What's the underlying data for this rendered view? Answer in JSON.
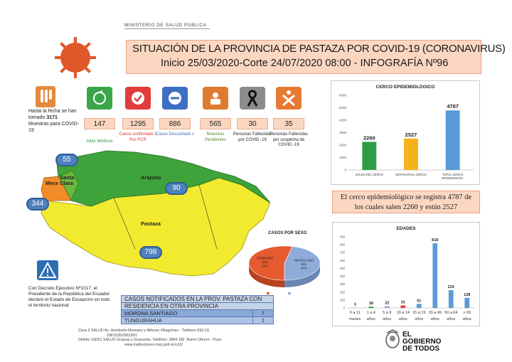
{
  "header": {
    "ministry": "MINISTERIO DE SALUD PÚBLICA",
    "title_line1": "SITUACIÓN DE LA PROVINCIA DE PASTAZA POR COVID-19 (CORONAVIRUS)",
    "title_line2": "Inicio 25/03/2020-Corte 24/07/2020 08:00  - INFOGRAFÍA Nº96"
  },
  "tests_note": {
    "prefix": "Hasta la fecha se han tomado",
    "count": "3171",
    "suffix": "Muestras para COVID- 19"
  },
  "indicators": [
    {
      "value": "147",
      "label": "Altas Médicas",
      "color": "#3aa64a",
      "label_color": "#2e9c44",
      "icon": "recovery-icon"
    },
    {
      "value": "1295",
      "label": "Casos confirmado s Por PCR",
      "color": "#e23b3b",
      "label_color": "#d9322f",
      "icon": "check-icon"
    },
    {
      "value": "886",
      "label": "Casos Descartado s",
      "color": "#3d70c2",
      "label_color": "#3c6fc2",
      "icon": "minus-icon"
    },
    {
      "value": "565",
      "label": "Muestras Pendientes",
      "color": "#e07a2e",
      "label_color": "#5a7d2a",
      "icon": "sample-icon"
    },
    {
      "value": "30",
      "label": "Personas Fallecidas por COVID -19",
      "color": "#8c8c8c",
      "label_color": "#222222",
      "icon": "mourning-ribbon-icon"
    },
    {
      "value": "35",
      "label": "Personas Fallecidas por sospecha de COVID -19",
      "color": "#e67a34",
      "label_color": "#222222",
      "icon": "person-x-icon"
    }
  ],
  "map": {
    "bubbles": [
      {
        "value": "55"
      },
      {
        "value": "90"
      },
      {
        "value": "344"
      },
      {
        "value": "798"
      }
    ],
    "labels": {
      "mera": "Mera",
      "santa_clara": "Santa Clara",
      "arajuno": "Arajuno",
      "pastaza": "Pastaza"
    },
    "colors": {
      "north": "#3ea33a",
      "south": "#f2ea2e",
      "west": "#f28c28"
    }
  },
  "decree": "Con Decreto Ejecutivo Nº1017, el Presidente de la República del Ecuador declaró el Estado de Excepción en todo el territorio nacional",
  "cases_table": {
    "header_line1": "CASOS NOTIFICADOS EN LA PROV. PASTAZA CON",
    "header_line2": "RESIDENCIA EN OTRA PROVINCIA",
    "rows": [
      {
        "province": "MORONA SANTIAGO",
        "count": "7"
      },
      {
        "province": "TUNGURAHUA",
        "count": "1"
      }
    ]
  },
  "footer": {
    "line1": "Zona 3 SALUD Av. Humberto Moreano y Alfonso Villagómez - Teléfono 593 (3)",
    "line2": "2961535/2961891",
    "line3": "Distrito 16D01 SALUD Guayas y Guaranda. Teléfono: 2884 182. Barrio Obrero - Puyo",
    "line4": "www.instituciones.msp.gob.ec/cz3/"
  },
  "gov_logo": {
    "line1": "EL",
    "line2": "GOBIERNO",
    "line3": "DE TODOS"
  },
  "cerco_text": {
    "line1": "El cerco epidemiológico se registra 4787 de",
    "line2": "los cuales salen 2260  y están 2527"
  },
  "chart_data": [
    {
      "type": "bar",
      "title": "CERCO  EPIDEMIOLÓGICO",
      "categories": [
        "SALEN DEL CERCO",
        "ESTAN EN EL CERCO",
        "TOTAL  CERCO EPIDEMIOLÓG."
      ],
      "values": [
        2260,
        2527,
        4787
      ],
      "colors": [
        "#2e9c44",
        "#f5b21c",
        "#5b9bd5"
      ],
      "ylim": [
        0,
        6000
      ],
      "yticks": [
        "0",
        "1000",
        "2000",
        "3000",
        "4000",
        "5000",
        "6000"
      ]
    },
    {
      "type": "pie",
      "title": "CASOS POR SEXO",
      "slices": [
        {
          "name": "FEMENINO",
          "value": 694,
          "pct": "54%",
          "color": "#e55a2e"
        },
        {
          "name": "MASCULINO",
          "value": 601,
          "pct": "46%",
          "color": "#8eabd9"
        }
      ]
    },
    {
      "type": "bar",
      "title": "EDADES",
      "categories": [
        "0 a 11 meses",
        "1 a 4 años",
        "5 a 9 años",
        "10 a 14 años",
        "15 a 19 años",
        "20 a 49 años",
        "50 a 64 años",
        "> 65 años"
      ],
      "values": [
        3,
        18,
        22,
        31,
        51,
        818,
        224,
        128
      ],
      "colors": [
        "#5b9bd5",
        "#3aa64a",
        "#8eabd9",
        "#e23b3b",
        "#5b9bd5",
        "#5b9bd5",
        "#5b9bd5",
        "#5b9bd5"
      ],
      "ylim": [
        0,
        900
      ],
      "yticks": [
        "0",
        "100",
        "200",
        "300",
        "400",
        "500",
        "600",
        "700",
        "800",
        "900"
      ]
    }
  ]
}
